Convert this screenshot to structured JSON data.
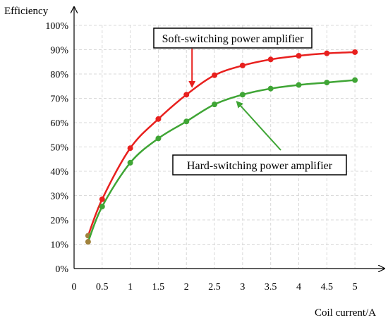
{
  "chart_data": {
    "type": "line",
    "title": "",
    "ylabel": "Efficiency",
    "xlabel": "Coil current/A",
    "xlim": [
      0,
      5.3
    ],
    "ylim": [
      0,
      100
    ],
    "x_ticks": [
      0,
      0.5,
      1,
      1.5,
      2,
      2.5,
      3,
      3.5,
      4,
      4.5,
      5
    ],
    "x_tick_labels": [
      "0",
      "0.5",
      "1",
      "1.5",
      "2",
      "2.5",
      "3",
      "3.5",
      "4",
      "4.5",
      "5"
    ],
    "y_ticks": [
      0,
      10,
      20,
      30,
      40,
      50,
      60,
      70,
      80,
      90,
      100
    ],
    "y_tick_labels": [
      "0%",
      "10%",
      "20%",
      "30%",
      "40%",
      "50%",
      "60%",
      "70%",
      "80%",
      "90%",
      "100%"
    ],
    "grid": true,
    "series": [
      {
        "name": "Soft-switching power amplifier",
        "color": "#e8201e",
        "x": [
          0.25,
          0.5,
          1,
          1.5,
          2,
          2.5,
          3,
          3.5,
          4,
          4.5,
          5
        ],
        "values": [
          13.5,
          28.5,
          49.5,
          61.5,
          71.5,
          79.5,
          83.5,
          86,
          87.5,
          88.5,
          89
        ]
      },
      {
        "name": "Hard-switching power amplifier",
        "color": "#3fa535",
        "x": [
          0.25,
          0.5,
          1,
          1.5,
          2,
          2.5,
          3,
          3.5,
          4,
          4.5,
          5
        ],
        "values": [
          11,
          25.5,
          43.5,
          53.5,
          60.5,
          67.5,
          71.5,
          74,
          75.5,
          76.5,
          77.5
        ]
      }
    ],
    "annotations": [
      {
        "text": "Soft-switching power amplifier",
        "series": 0,
        "arrow_to_x": 2.1
      },
      {
        "text": "Hard-switching power amplifier",
        "series": 1,
        "arrow_to_x": 2.85
      }
    ]
  }
}
